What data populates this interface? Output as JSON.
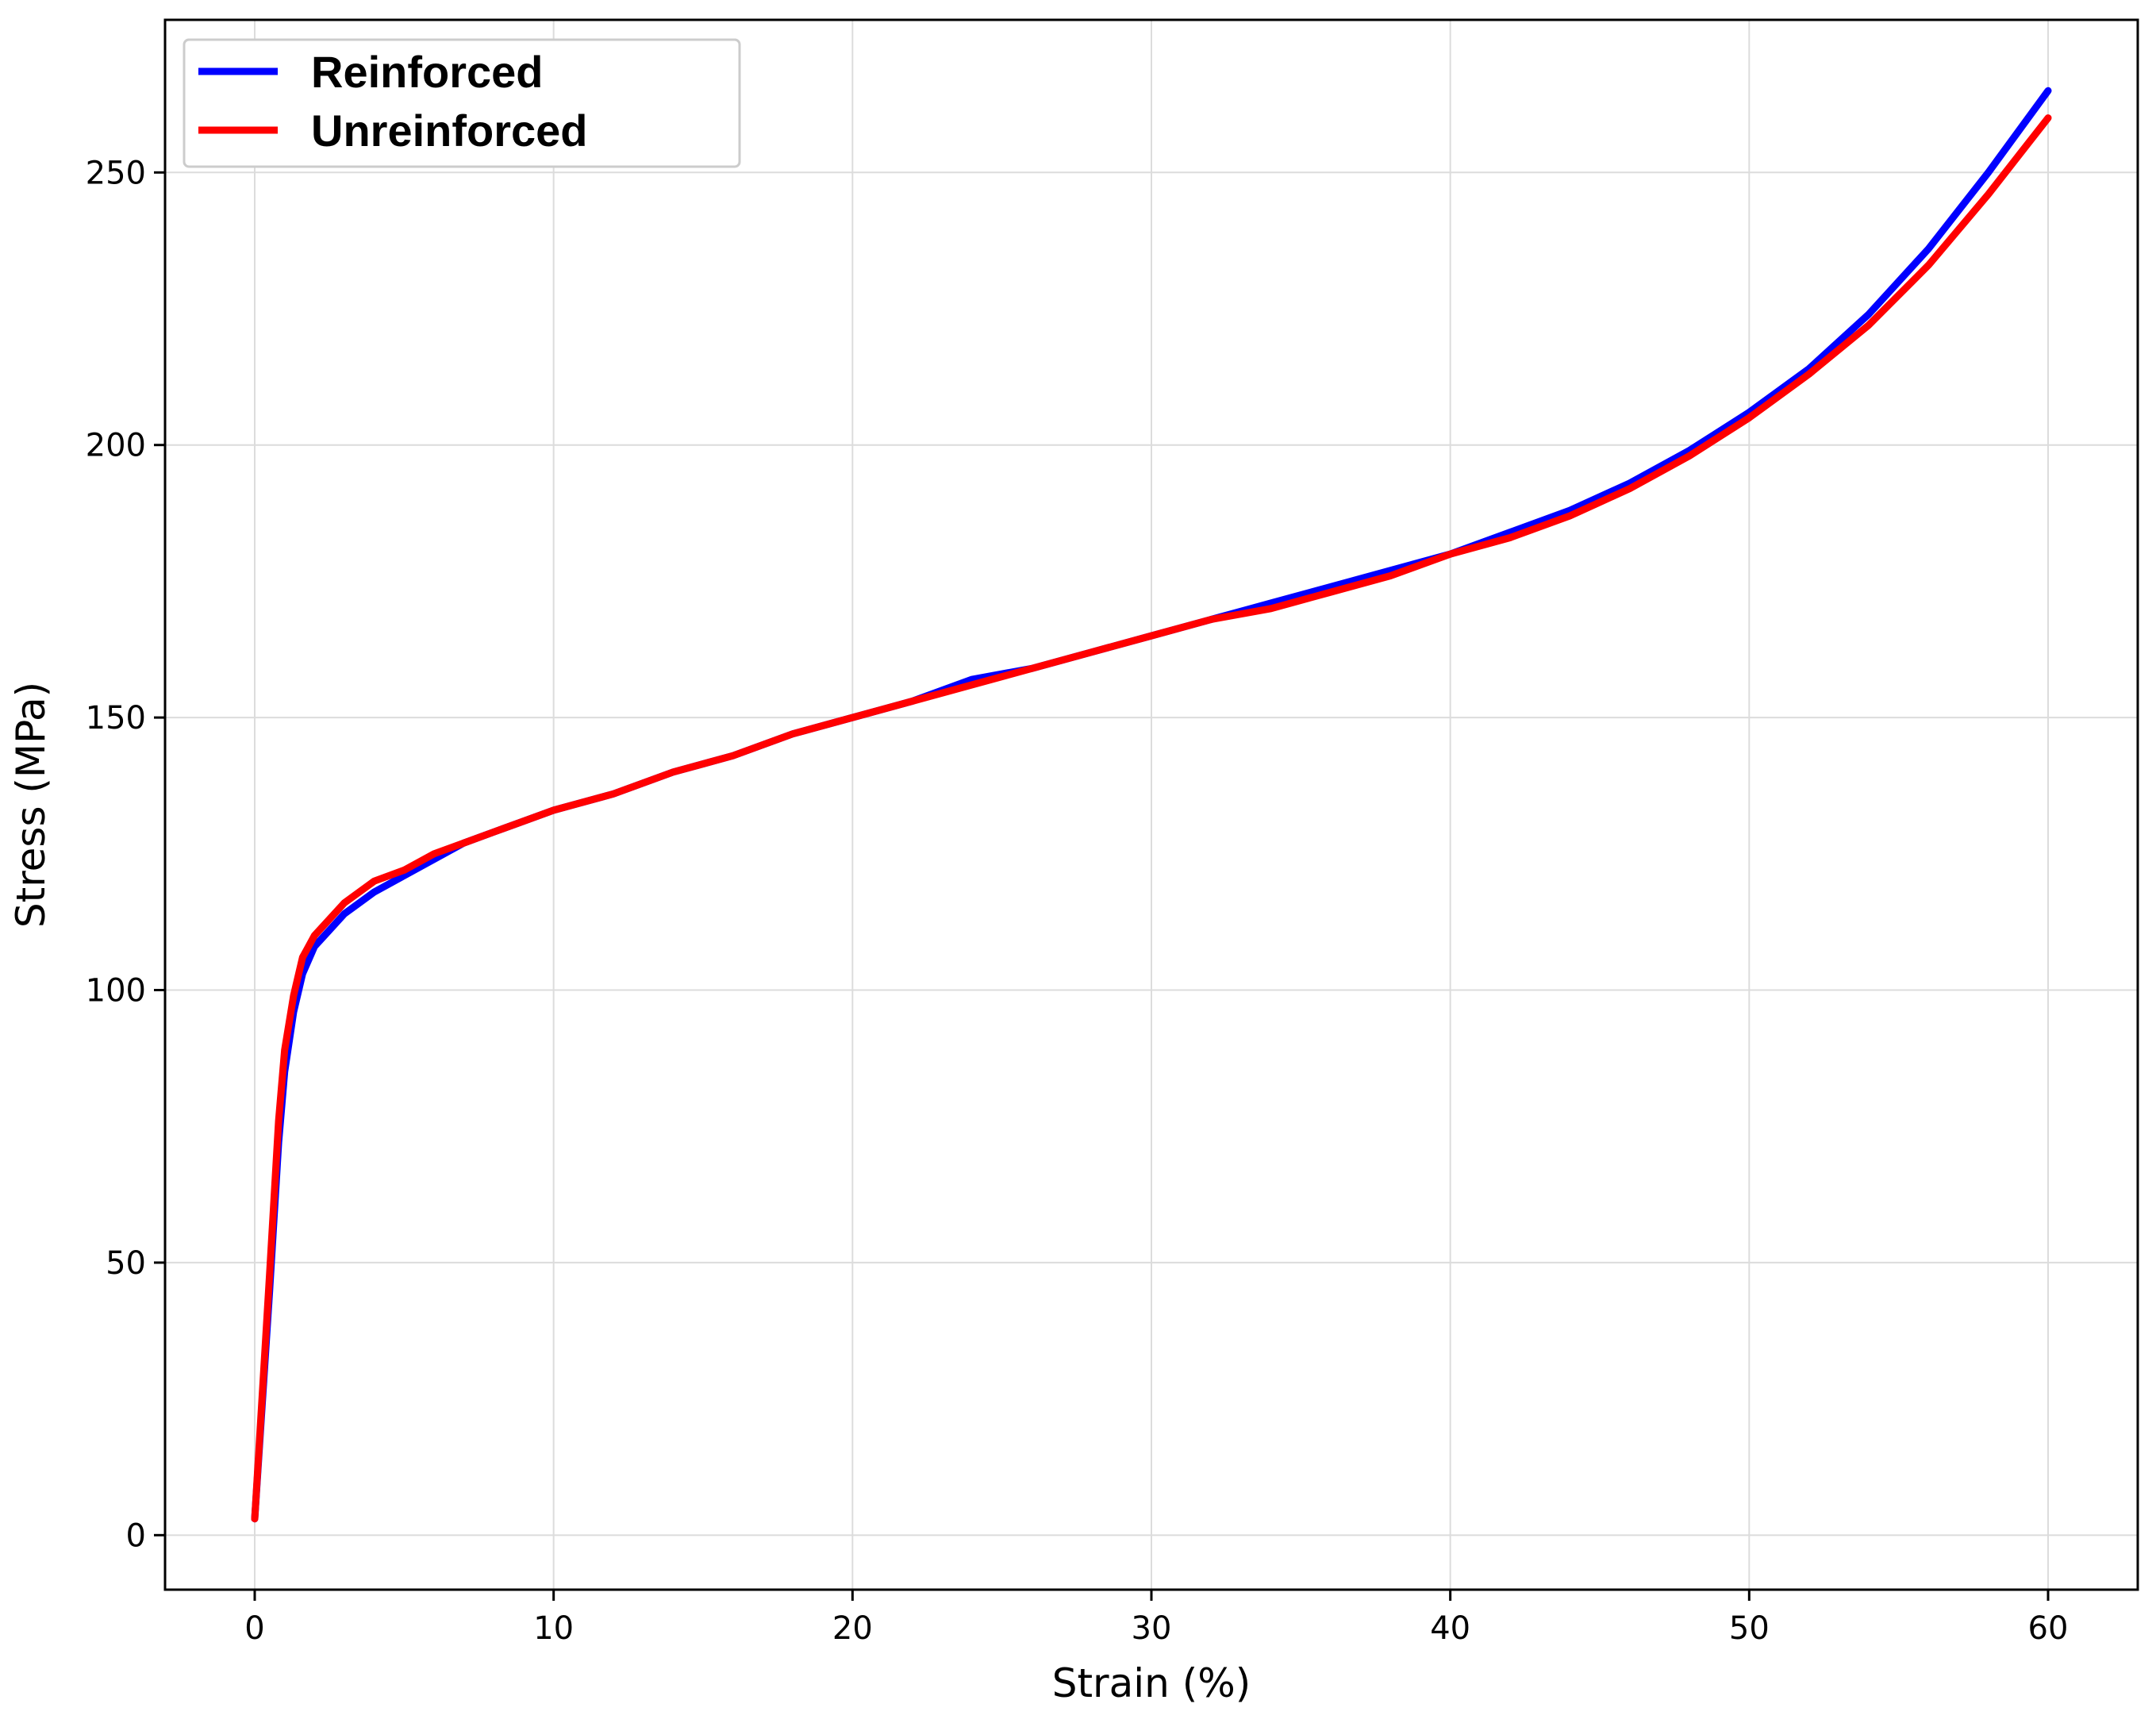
{
  "chart_data": {
    "type": "line",
    "title": "",
    "xlabel": "Strain (%)",
    "ylabel": "Stress (MPa)",
    "xlim": [
      -3,
      63
    ],
    "ylim": [
      -10,
      278
    ],
    "xticks": [
      0,
      10,
      20,
      30,
      40,
      50,
      60
    ],
    "yticks": [
      0,
      50,
      100,
      150,
      200,
      250
    ],
    "grid": true,
    "legend_position": "top-left",
    "series": [
      {
        "name": "Reinforced",
        "color": "#0000ff",
        "points": [
          [
            0,
            3
          ],
          [
            0.5,
            45
          ],
          [
            0.8,
            72
          ],
          [
            1.0,
            85
          ],
          [
            1.3,
            96
          ],
          [
            1.6,
            103
          ],
          [
            2.0,
            108
          ],
          [
            2.5,
            111
          ],
          [
            3,
            114
          ],
          [
            4,
            118
          ],
          [
            5,
            121
          ],
          [
            6,
            124
          ],
          [
            7,
            127
          ],
          [
            8,
            129
          ],
          [
            9,
            131
          ],
          [
            10,
            133
          ],
          [
            12,
            136
          ],
          [
            14,
            140
          ],
          [
            16,
            143
          ],
          [
            18,
            147
          ],
          [
            20,
            150
          ],
          [
            22,
            153
          ],
          [
            24,
            157
          ],
          [
            26,
            159
          ],
          [
            28,
            162
          ],
          [
            30,
            165
          ],
          [
            32,
            168
          ],
          [
            34,
            171
          ],
          [
            36,
            174
          ],
          [
            38,
            177
          ],
          [
            40,
            180
          ],
          [
            42,
            184
          ],
          [
            44,
            188
          ],
          [
            46,
            193
          ],
          [
            48,
            199
          ],
          [
            50,
            206
          ],
          [
            52,
            214
          ],
          [
            54,
            224
          ],
          [
            56,
            236
          ],
          [
            58,
            250
          ],
          [
            60,
            265
          ]
        ]
      },
      {
        "name": "Unreinforced",
        "color": "#ff0000",
        "points": [
          [
            0,
            3
          ],
          [
            0.5,
            48
          ],
          [
            0.8,
            76
          ],
          [
            1.0,
            89
          ],
          [
            1.3,
            99
          ],
          [
            1.6,
            106
          ],
          [
            2.0,
            110
          ],
          [
            2.5,
            113
          ],
          [
            3,
            116
          ],
          [
            4,
            120
          ],
          [
            5,
            122
          ],
          [
            6,
            125
          ],
          [
            7,
            127
          ],
          [
            8,
            129
          ],
          [
            9,
            131
          ],
          [
            10,
            133
          ],
          [
            12,
            136
          ],
          [
            14,
            140
          ],
          [
            16,
            143
          ],
          [
            18,
            147
          ],
          [
            20,
            150
          ],
          [
            22,
            153
          ],
          [
            24,
            156
          ],
          [
            26,
            159
          ],
          [
            28,
            162
          ],
          [
            30,
            165
          ],
          [
            32,
            168
          ],
          [
            34,
            170
          ],
          [
            36,
            173
          ],
          [
            38,
            176
          ],
          [
            40,
            180
          ],
          [
            42,
            183
          ],
          [
            44,
            187
          ],
          [
            46,
            192
          ],
          [
            48,
            198
          ],
          [
            50,
            205
          ],
          [
            52,
            213
          ],
          [
            54,
            222
          ],
          [
            56,
            233
          ],
          [
            58,
            246
          ],
          [
            60,
            260
          ]
        ]
      }
    ]
  }
}
